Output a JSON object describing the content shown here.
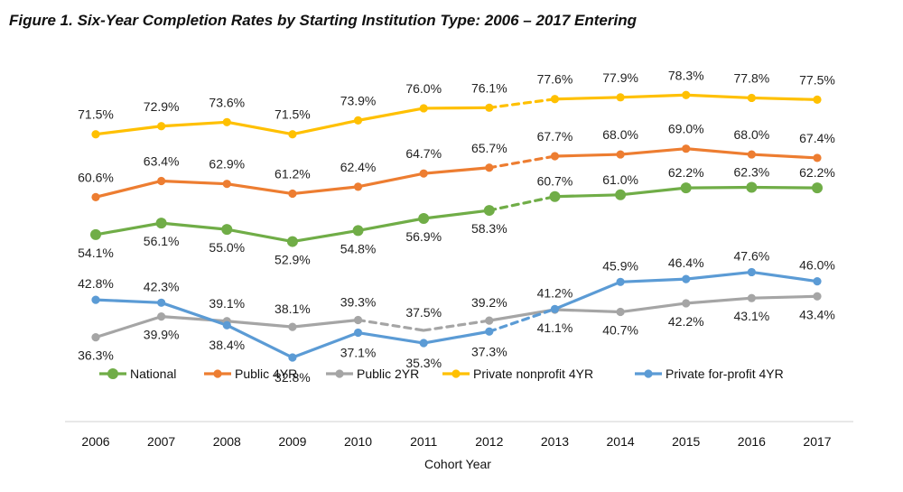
{
  "chart_data": {
    "type": "line",
    "title": "Figure 1. Six-Year Completion Rates by Starting Institution Type: 2006 – 2017 Entering",
    "xlabel": "Cohort Year",
    "ylabel": "",
    "ylim": [
      25,
      85
    ],
    "grid": false,
    "legend_position": "bottom",
    "categories": [
      "2006",
      "2007",
      "2008",
      "2009",
      "2010",
      "2011",
      "2012",
      "2013",
      "2014",
      "2015",
      "2016",
      "2017"
    ],
    "dashed_segments": [
      {
        "series": "National",
        "from": "2012",
        "to": "2013"
      },
      {
        "series": "Public 4YR",
        "from": "2012",
        "to": "2013"
      },
      {
        "series": "Public 2YR",
        "from": "2010",
        "to": "2012"
      },
      {
        "series": "Private nonprofit 4YR",
        "from": "2012",
        "to": "2013"
      },
      {
        "series": "Private for-profit 4YR",
        "from": "2012",
        "to": "2013"
      }
    ],
    "series": [
      {
        "name": "National",
        "color": "#70ad47",
        "values": [
          54.1,
          56.1,
          55.0,
          52.9,
          54.8,
          56.9,
          58.3,
          60.7,
          61.0,
          62.2,
          62.3,
          62.2
        ],
        "labels": [
          "54.1%",
          "56.1%",
          "55.0%",
          "52.9%",
          "54.8%",
          "56.9%",
          "58.3%",
          "60.7%",
          "61.0%",
          "62.2%",
          "62.3%",
          "62.2%"
        ]
      },
      {
        "name": "Public 4YR",
        "color": "#ed7d31",
        "values": [
          60.6,
          63.4,
          62.9,
          61.2,
          62.4,
          64.7,
          65.7,
          67.7,
          68.0,
          69.0,
          68.0,
          67.4
        ],
        "labels": [
          "60.6%",
          "63.4%",
          "62.9%",
          "61.2%",
          "62.4%",
          "64.7%",
          "65.7%",
          "67.7%",
          "68.0%",
          "69.0%",
          "68.0%",
          "67.4%"
        ]
      },
      {
        "name": "Public 2YR",
        "color": "#a5a5a5",
        "values": [
          36.3,
          39.9,
          39.1,
          38.1,
          39.3,
          37.5,
          39.2,
          41.1,
          40.7,
          42.2,
          43.1,
          43.4
        ],
        "labels": [
          "36.3%",
          "39.9%",
          "39.1%",
          "38.1%",
          "39.3%",
          "37.5%",
          "39.2%",
          "41.1%",
          "40.7%",
          "42.2%",
          "43.1%",
          "43.4%"
        ]
      },
      {
        "name": "Private nonprofit 4YR",
        "color": "#ffc000",
        "values": [
          71.5,
          72.9,
          73.6,
          71.5,
          73.9,
          76.0,
          76.1,
          77.6,
          77.9,
          78.3,
          77.8,
          77.5
        ],
        "labels": [
          "71.5%",
          "72.9%",
          "73.6%",
          "71.5%",
          "73.9%",
          "76.0%",
          "76.1%",
          "77.6%",
          "77.9%",
          "78.3%",
          "77.8%",
          "77.5%"
        ]
      },
      {
        "name": "Private for-profit 4YR",
        "color": "#5b9bd5",
        "values": [
          42.8,
          42.3,
          38.4,
          32.8,
          37.1,
          35.3,
          37.3,
          41.2,
          45.9,
          46.4,
          47.6,
          46.0
        ],
        "labels": [
          "42.8%",
          "42.3%",
          "38.4%",
          "32.8%",
          "37.1%",
          "35.3%",
          "37.3%",
          "41.2%",
          "45.9%",
          "46.4%",
          "47.6%",
          "46.0%"
        ]
      }
    ]
  }
}
